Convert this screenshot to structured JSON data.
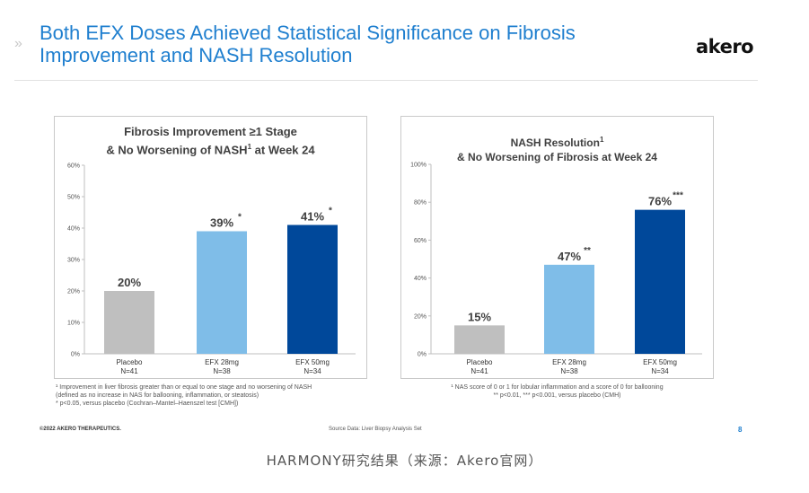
{
  "slide": {
    "title_line1": "Both EFX Doses Achieved Statistical Significance on Fibrosis",
    "title_line2": "Improvement and NASH Resolution",
    "logo": "akero",
    "chevron": "»",
    "copyright": "©2022 AKERO THERAPEUTICS.",
    "source": "Source Data: Liver Biopsy Analysis Set",
    "page_number": "8"
  },
  "caption": "HARMONY研究结果（来源：Akero官网）",
  "colors": {
    "placebo": "#bfbfbf",
    "efx28": "#7fbde8",
    "efx50": "#00489a",
    "title": "#1f7fcf"
  },
  "chart_data": [
    {
      "type": "bar",
      "title_line1": "Fibrosis Improvement ≥1 Stage",
      "title_line2_pre": "& No Worsening of NASH",
      "title_sup": "1",
      "title_line2_post": " at Week 24",
      "categories": [
        "Placebo",
        "EFX 28mg",
        "EFX 50mg"
      ],
      "n_labels": [
        "N=41",
        "N=38",
        "N=34"
      ],
      "values": [
        20,
        39,
        41
      ],
      "value_labels": [
        "20%",
        "39%",
        "41%"
      ],
      "significance": [
        "",
        "*",
        "*"
      ],
      "ylim": [
        0,
        60
      ],
      "yticks": [
        "0%",
        "10%",
        "20%",
        "30%",
        "40%",
        "50%",
        "60%"
      ],
      "footnotes": [
        "¹ Improvement in liver fibrosis greater than or equal to one stage and no worsening of NASH",
        "(defined as no increase in NAS for ballooning, inflammation, or steatosis)",
        "* p<0.05, versus placebo (Cochran–Mantel–Haenszel test [CMH])"
      ]
    },
    {
      "type": "bar",
      "title_line1_pre": "NASH Resolution",
      "title_sup": "1",
      "title_line2": "& No Worsening of Fibrosis at Week 24",
      "categories": [
        "Placebo",
        "EFX 28mg",
        "EFX 50mg"
      ],
      "n_labels": [
        "N=41",
        "N=38",
        "N=34"
      ],
      "values": [
        15,
        47,
        76
      ],
      "value_labels": [
        "15%",
        "47%",
        "76%"
      ],
      "significance": [
        "",
        "**",
        "***"
      ],
      "ylim": [
        0,
        100
      ],
      "yticks": [
        "0%",
        "20%",
        "40%",
        "60%",
        "80%",
        "100%"
      ],
      "footnotes": [
        "¹ NAS score of 0 or 1 for lobular inflammation and a score of 0 for ballooning",
        "** p<0.01, *** p<0.001, versus placebo (CMH)"
      ]
    }
  ]
}
